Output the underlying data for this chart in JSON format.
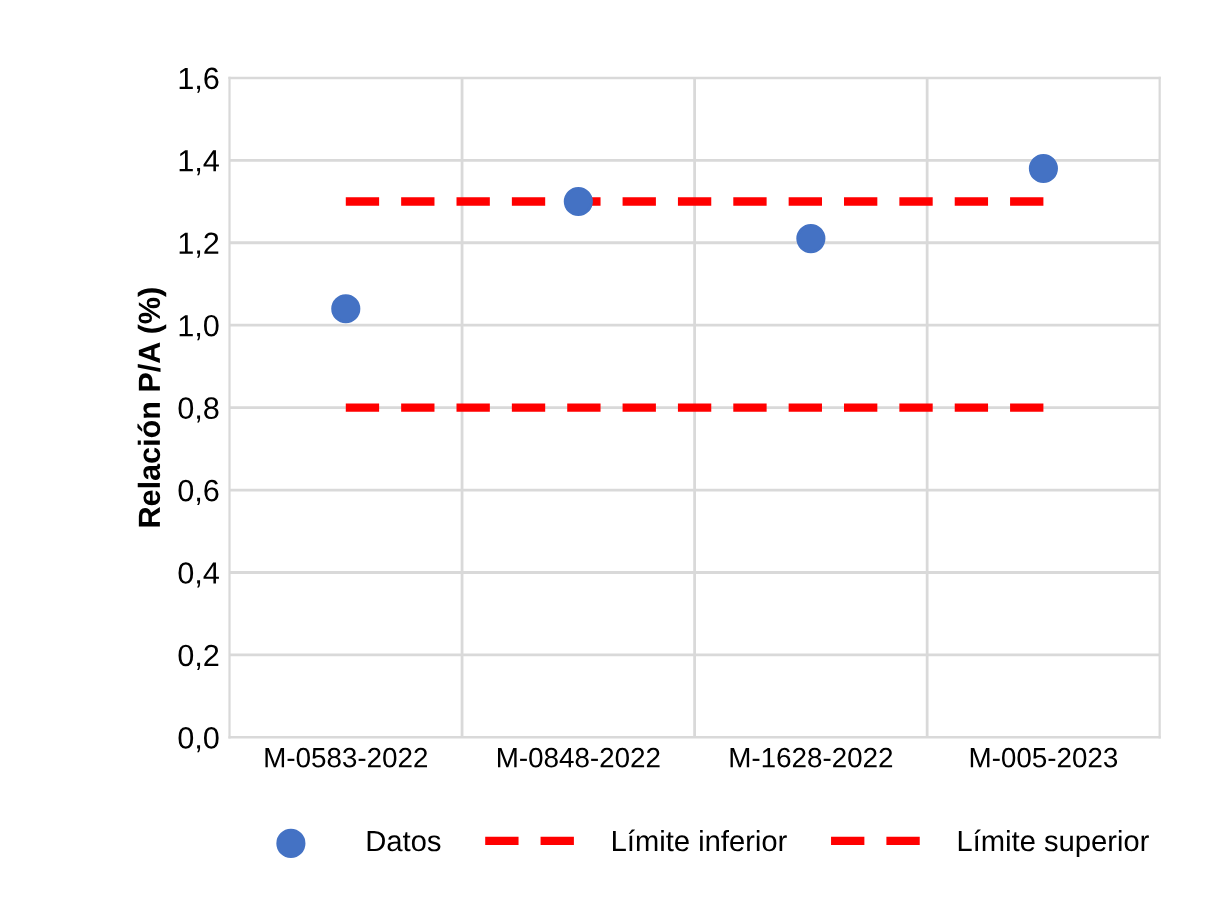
{
  "chart_data": {
    "type": "scatter",
    "ylabel": "Relación P/A (%)",
    "categories": [
      "M-0583-2022",
      "M-0848-2022",
      "M-1628-2022",
      "M-005-2023"
    ],
    "series": [
      {
        "name": "Datos",
        "color": "#4472c4",
        "values": [
          1.04,
          1.3,
          1.21,
          1.38
        ],
        "type": "scatter",
        "marker": "circle"
      },
      {
        "name": "Límite inferior",
        "color": "#ff0000",
        "values": [
          0.8,
          0.8,
          0.8,
          0.8
        ],
        "type": "line",
        "line_style": "dashed",
        "marker": "none"
      },
      {
        "name": "Límite superior",
        "color": "#ff0000",
        "values": [
          1.3,
          1.3,
          1.3,
          1.3
        ],
        "type": "line",
        "line_style": "dashed",
        "marker": "none"
      }
    ],
    "ylim": [
      0,
      1.6
    ],
    "yticks": [
      {
        "value": 0,
        "label": "0,0"
      },
      {
        "value": 0.2,
        "label": "0,2"
      },
      {
        "value": 0.4,
        "label": "0,4"
      },
      {
        "value": 0.6,
        "label": "0,6"
      },
      {
        "value": 0.8,
        "label": "0,8"
      },
      {
        "value": 1.0,
        "label": "1,0"
      },
      {
        "value": 1.2,
        "label": "1,2"
      },
      {
        "value": 1.4,
        "label": "1,4"
      },
      {
        "value": 1.6,
        "label": "1,6"
      }
    ],
    "grid": true,
    "legend": "bottom"
  }
}
